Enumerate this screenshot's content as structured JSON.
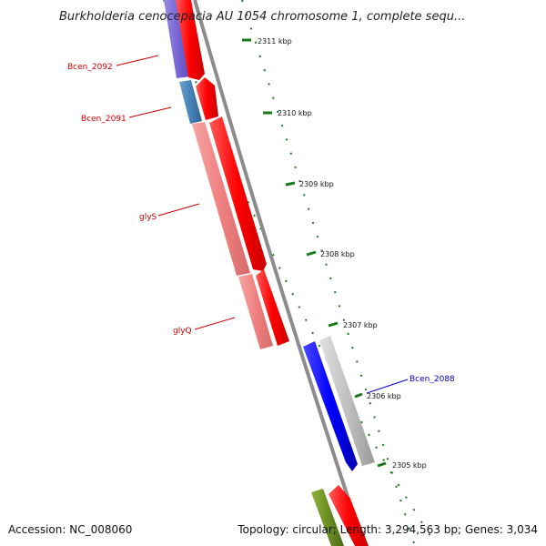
{
  "header": {
    "title": "Burkholderia cenocepacia AU 1054 chromosome 1, complete sequ..."
  },
  "footer": {
    "accession": "Accession: NC_008060",
    "summary": "Topology: circular; Length: 3,294,563 bp; Genes: 3,034"
  },
  "map": {
    "backbone_color": "#8c8c8c",
    "scale_color": "#1a7a1a",
    "ticks": [
      {
        "label": "2311 kbp"
      },
      {
        "label": "2310 kbp"
      },
      {
        "label": "2309 kbp"
      },
      {
        "label": "2308 kbp"
      },
      {
        "label": "2307 kbp"
      },
      {
        "label": "2306 kbp"
      },
      {
        "label": "2305 kbp"
      }
    ],
    "gene_labels": [
      {
        "text": "Bcen_2092",
        "color": "#cc0000"
      },
      {
        "text": "Bcen_2091",
        "color": "#cc0000"
      },
      {
        "text": "glyS",
        "color": "#cc0000"
      },
      {
        "text": "glyQ",
        "color": "#cc0000"
      },
      {
        "text": "Bcen_2088",
        "color": "#0000cc"
      }
    ],
    "features": [
      {
        "name": "Bcen_2092",
        "track": "cds",
        "color": "#ff0000"
      },
      {
        "name": "Bcen_2091",
        "track": "cds",
        "color": "#ff0000"
      },
      {
        "name": "glyS",
        "track": "cds",
        "color": "#ff0000"
      },
      {
        "name": "glyQ",
        "track": "cds",
        "color": "#ff0000"
      },
      {
        "name": "Bcen_2088",
        "track": "cds",
        "color": "#0000ff"
      },
      {
        "name": "next-gene",
        "track": "cds",
        "color": "#ff0000"
      },
      {
        "name": "Bcen_2092",
        "track": "cog",
        "color": "#7b68d6"
      },
      {
        "name": "Bcen_2091",
        "track": "cog",
        "color": "#4682b4"
      },
      {
        "name": "glyS",
        "track": "cog",
        "color": "#f08080"
      },
      {
        "name": "glyQ",
        "track": "cog",
        "color": "#f08080"
      },
      {
        "name": "Bcen_2088",
        "track": "cog",
        "color": "#c0c0c0"
      },
      {
        "name": "next-gene",
        "track": "cog",
        "color": "#6b8e23"
      }
    ]
  }
}
